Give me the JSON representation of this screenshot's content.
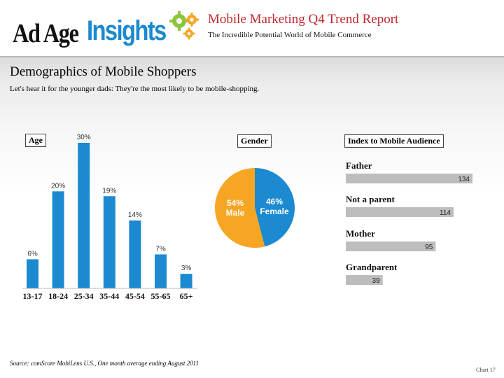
{
  "header": {
    "logo_adage": "Ad Age",
    "logo_insights": "Insights",
    "report_title": "Mobile Marketing Q4 Trend Report",
    "report_subtitle": "The Incredible Potential World of Mobile Commerce"
  },
  "section": {
    "title": "Demographics of Mobile Shoppers",
    "subtitle": "Let's hear it for the younger dads: They're the most likely to be mobile-shopping."
  },
  "colors": {
    "blue": "#1b8ad0",
    "orange": "#f6a623",
    "grey_bar": "#bdbdbd",
    "title_red": "#c1272d"
  },
  "chart_data": [
    {
      "type": "bar",
      "title": "Age",
      "categories": [
        "13-17",
        "18-24",
        "25-34",
        "35-44",
        "45-54",
        "55-65",
        "65+"
      ],
      "values": [
        6,
        20,
        30,
        19,
        14,
        7,
        3
      ],
      "value_labels": [
        "6%",
        "20%",
        "30%",
        "19%",
        "14%",
        "7%",
        "3%"
      ],
      "ylim": [
        0,
        30
      ]
    },
    {
      "type": "pie",
      "title": "Gender",
      "slices": [
        {
          "label": "Female",
          "pct_label": "46%",
          "value": 46
        },
        {
          "label": "Male",
          "pct_label": "54%",
          "value": 54
        }
      ]
    },
    {
      "type": "bar",
      "orientation": "horizontal",
      "title": "Index to Mobile Audience",
      "categories": [
        "Father",
        "Not a parent",
        "Mother",
        "Grandparent"
      ],
      "values": [
        134,
        114,
        95,
        39
      ],
      "value_labels": [
        "134",
        "114",
        "95",
        "39"
      ],
      "xlim": [
        0,
        134
      ]
    }
  ],
  "footer": {
    "source": "Source: comScore MobiLens U.S., One month average ending August 2011",
    "chart_number": "Chart 17"
  }
}
